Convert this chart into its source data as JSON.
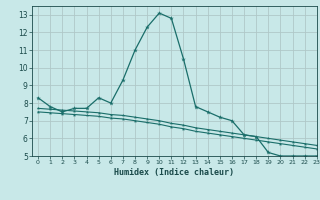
{
  "title": "",
  "xlabel": "Humidex (Indice chaleur)",
  "background_color": "#c8e8e8",
  "grid_color": "#b0c8c8",
  "line_color": "#1a6e6a",
  "xlim": [
    -0.5,
    23
  ],
  "ylim": [
    5,
    13.5
  ],
  "xticks": [
    0,
    1,
    2,
    3,
    4,
    5,
    6,
    7,
    8,
    9,
    10,
    11,
    12,
    13,
    14,
    15,
    16,
    17,
    18,
    19,
    20,
    21,
    22,
    23
  ],
  "yticks": [
    5,
    6,
    7,
    8,
    9,
    10,
    11,
    12,
    13
  ],
  "series1_x": [
    0,
    1,
    2,
    3,
    4,
    5,
    6,
    7,
    8,
    9,
    10,
    11,
    12,
    13,
    14,
    15,
    16,
    17,
    18,
    19,
    20,
    21,
    22,
    23
  ],
  "series1_y": [
    8.3,
    7.8,
    7.5,
    7.7,
    7.7,
    8.3,
    8.0,
    9.3,
    11.0,
    12.3,
    13.1,
    12.8,
    10.5,
    7.8,
    7.5,
    7.2,
    7.0,
    6.2,
    6.1,
    5.2,
    5.0,
    5.0,
    5.0,
    5.0
  ],
  "series2_x": [
    0,
    1,
    2,
    3,
    4,
    5,
    6,
    7,
    8,
    9,
    10,
    11,
    12,
    13,
    14,
    15,
    16,
    17,
    18,
    19,
    20,
    21,
    22,
    23
  ],
  "series2_y": [
    7.7,
    7.65,
    7.6,
    7.55,
    7.5,
    7.45,
    7.35,
    7.3,
    7.2,
    7.1,
    7.0,
    6.85,
    6.75,
    6.6,
    6.5,
    6.4,
    6.3,
    6.2,
    6.1,
    6.0,
    5.9,
    5.8,
    5.7,
    5.6
  ],
  "series3_x": [
    0,
    1,
    2,
    3,
    4,
    5,
    6,
    7,
    8,
    9,
    10,
    11,
    12,
    13,
    14,
    15,
    16,
    17,
    18,
    19,
    20,
    21,
    22,
    23
  ],
  "series3_y": [
    7.5,
    7.45,
    7.4,
    7.35,
    7.3,
    7.25,
    7.15,
    7.1,
    7.0,
    6.9,
    6.8,
    6.65,
    6.55,
    6.4,
    6.3,
    6.2,
    6.1,
    6.0,
    5.9,
    5.8,
    5.7,
    5.6,
    5.5,
    5.4
  ]
}
